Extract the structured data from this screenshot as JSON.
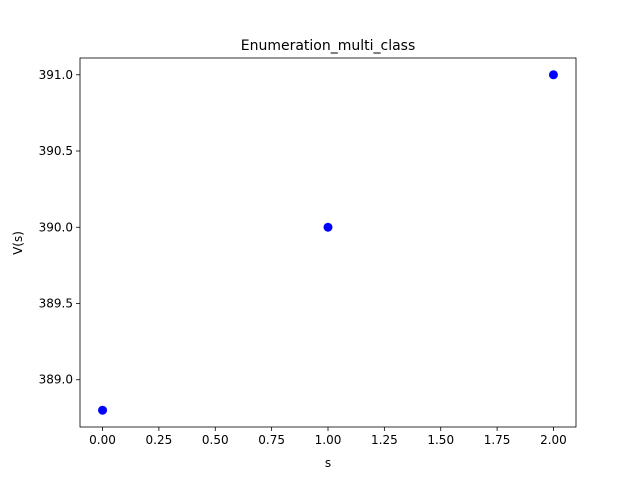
{
  "chart_data": {
    "type": "scatter",
    "title": "Enumeration_multi_class",
    "xlabel": "s",
    "ylabel": "V(s)",
    "xlim": [
      -0.1,
      2.1
    ],
    "ylim": [
      388.69,
      391.11
    ],
    "x_ticks": [
      0.0,
      0.25,
      0.5,
      0.75,
      1.0,
      1.25,
      1.5,
      1.75,
      2.0
    ],
    "x_tick_labels": [
      "0.00",
      "0.25",
      "0.50",
      "0.75",
      "1.00",
      "1.25",
      "1.50",
      "1.75",
      "2.00"
    ],
    "y_ticks": [
      389.0,
      389.5,
      390.0,
      390.5,
      391.0
    ],
    "y_tick_labels": [
      "389.0",
      "389.5",
      "390.0",
      "390.5",
      "391.0"
    ],
    "grid": false,
    "legend": "none",
    "series": [
      {
        "color": "#0000ff",
        "x": [
          0,
          1,
          2
        ],
        "y": [
          388.8,
          390.0,
          391.0
        ]
      }
    ]
  }
}
